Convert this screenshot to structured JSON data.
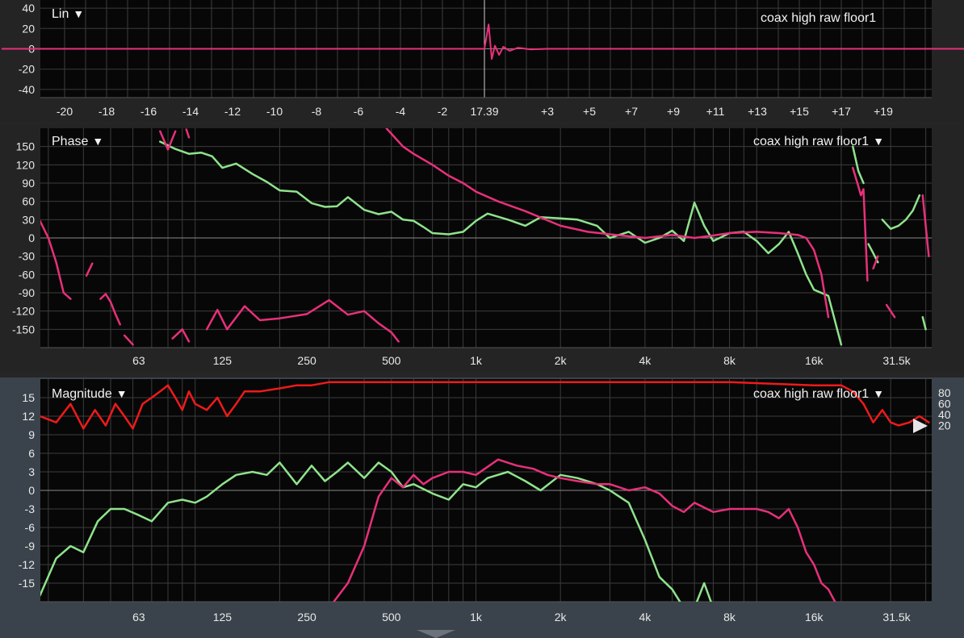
{
  "colors": {
    "green": "#8fe38c",
    "pink": "#e8307a",
    "red": "#ef1a1a",
    "grid": "#3c3c3c",
    "zero": "#8a8a8a",
    "plot_bg": "#070707"
  },
  "lin_panel": {
    "title": "Lin",
    "dropdown_icon": "triangle-down-icon",
    "trace_name": "coax high raw floor1",
    "y_ticks": [
      "40",
      "20",
      "0",
      "-20",
      "-40"
    ],
    "x_ticks": [
      "-20",
      "-18",
      "-16",
      "-14",
      "-12",
      "-10",
      "-8",
      "-6",
      "-4",
      "-2",
      "17.39",
      "+3",
      "+5",
      "+7",
      "+9",
      "+11",
      "+13",
      "+15",
      "+17",
      "+19"
    ]
  },
  "phase_panel": {
    "title": "Phase",
    "dropdown_icon": "triangle-down-icon",
    "trace_name": "coax high raw floor1",
    "trace_dropdown_icon": "triangle-down-icon",
    "y_ticks": [
      "150",
      "120",
      "90",
      "60",
      "30",
      "0",
      "-30",
      "-60",
      "-90",
      "-120",
      "-150"
    ],
    "x_ticks": [
      "63",
      "125",
      "250",
      "500",
      "1k",
      "2k",
      "4k",
      "8k",
      "16k",
      "31.5k"
    ]
  },
  "magnitude_panel": {
    "title": "Magnitude",
    "dropdown_icon": "triangle-down-icon",
    "trace_name": "coax high raw floor1",
    "trace_dropdown_icon": "triangle-down-icon",
    "y_ticks": [
      "15",
      "12",
      "9",
      "6",
      "3",
      "0",
      "-3",
      "-6",
      "-9",
      "-12",
      "-15"
    ],
    "right_ticks": [
      "80",
      "60",
      "40",
      "20"
    ],
    "x_ticks": [
      "63",
      "125",
      "250",
      "500",
      "1k",
      "2k",
      "4k",
      "8k",
      "16k",
      "31.5k"
    ],
    "handle_icon": "play-triangle-icon"
  },
  "chart_data": [
    {
      "type": "line",
      "title": "Lin",
      "x_ticks": [
        "-20",
        "-18",
        "-16",
        "-14",
        "-12",
        "-10",
        "-8",
        "-6",
        "-4",
        "-2",
        "17.39",
        "+3",
        "+5",
        "+7",
        "+9",
        "+11",
        "+13",
        "+15",
        "+17",
        "+19"
      ],
      "ylim": [
        -48,
        48
      ],
      "cursor_x": "17.39",
      "series": [
        {
          "name": "coax high raw floor1",
          "color": "#e8307a",
          "x": [
            -23,
            -2,
            0,
            0.2,
            0.35,
            0.5,
            0.7,
            0.9,
            1.2,
            1.6,
            2.2,
            3,
            24
          ],
          "y": [
            0,
            0,
            0,
            24,
            -10,
            3,
            -6,
            2,
            -2,
            1,
            -0.6,
            0,
            0
          ]
        }
      ]
    },
    {
      "type": "line",
      "title": "Phase",
      "x_scale": "log",
      "x_ticks": [
        "63",
        "125",
        "250",
        "500",
        "1k",
        "2k",
        "4k",
        "8k",
        "16k",
        "31.5k"
      ],
      "ylim": [
        -180,
        180
      ],
      "series": [
        {
          "name": "green",
          "color": "#8fe38c",
          "segments": [
            {
              "x": [
                75,
                85,
                95,
                105,
                115,
                125,
                140,
                160,
                180,
                200,
                230,
                260,
                290,
                320,
                350,
                400,
                450,
                500,
                550,
                600,
                650,
                700,
                800,
                900,
                1000,
                1100,
                1300,
                1500,
                1700,
                2000,
                2300,
                2700,
                3000,
                3500,
                4000,
                4500,
                5000,
                5500,
                6000,
                6500,
                7000,
                8000,
                9000,
                10000,
                11000,
                12000,
                13000,
                14000,
                15000,
                16000,
                18000,
                20000
              ],
              "y": [
                158,
                146,
                138,
                140,
                134,
                115,
                122,
                105,
                92,
                78,
                76,
                57,
                51,
                52,
                67,
                46,
                39,
                43,
                30,
                28,
                18,
                8,
                6,
                10,
                28,
                40,
                30,
                20,
                34,
                32,
                30,
                20,
                0,
                10,
                -8,
                0,
                12,
                -5,
                58,
                20,
                -5,
                8,
                10,
                -5,
                -25,
                -10,
                10,
                -25,
                -60,
                -85,
                -95,
                -175
              ]
            },
            {
              "x": [
                22000,
                23000,
                24000
              ],
              "y": [
                150,
                110,
                90
              ]
            },
            {
              "x": [
                25000,
                26000,
                27000
              ],
              "y": [
                -10,
                -25,
                -40
              ]
            },
            {
              "x": [
                28000,
                30000,
                32000,
                34000,
                36000,
                38000
              ],
              "y": [
                30,
                15,
                20,
                30,
                45,
                70
              ]
            },
            {
              "x": [
                39000,
                40000
              ],
              "y": [
                -130,
                -150
              ]
            }
          ]
        },
        {
          "name": "pink",
          "color": "#e8307a",
          "segments": [
            {
              "x": [
                28,
                30,
                32,
                34,
                36
              ],
              "y": [
                28,
                0,
                -40,
                -90,
                -100
              ]
            },
            {
              "x": [
                41,
                43
              ],
              "y": [
                -62,
                -42
              ]
            },
            {
              "x": [
                46,
                48,
                50,
                52,
                54
              ],
              "y": [
                -100,
                -92,
                -105,
                -125,
                -142
              ]
            },
            {
              "x": [
                56,
                60
              ],
              "y": [
                -160,
                -175
              ]
            },
            {
              "x": [
                75,
                80,
                85
              ],
              "y": [
                175,
                145,
                175
              ]
            },
            {
              "x": [
                93,
                95
              ],
              "y": [
                178,
                165
              ]
            },
            {
              "x": [
                83,
                90,
                95
              ],
              "y": [
                -165,
                -150,
                -170
              ]
            },
            {
              "x": [
                110,
                120,
                130,
                150,
                170,
                200,
                250,
                300,
                350,
                400,
                450,
                500,
                530
              ],
              "y": [
                -150,
                -118,
                -150,
                -112,
                -135,
                -132,
                -125,
                -102,
                -126,
                -120,
                -140,
                -155,
                -170
              ]
            },
            {
              "x": [
                480,
                550,
                600,
                700,
                800,
                900,
                1000,
                1200,
                1500,
                2000,
                2500,
                3000,
                4000,
                5000,
                6000,
                7000,
                8000,
                10000,
                12000,
                14000,
                15000,
                16000,
                17000,
                18000
              ],
              "y": [
                180,
                150,
                138,
                120,
                102,
                90,
                76,
                60,
                44,
                20,
                10,
                6,
                0,
                5,
                0,
                4,
                8,
                10,
                8,
                5,
                0,
                -20,
                -60,
                -130
              ]
            },
            {
              "x": [
                22000,
                23000,
                23500,
                24000,
                24800
              ],
              "y": [
                115,
                85,
                70,
                80,
                -70
              ]
            },
            {
              "x": [
                26000,
                27000
              ],
              "y": [
                -50,
                -30
              ]
            },
            {
              "x": [
                29000,
                31000
              ],
              "y": [
                -110,
                -130
              ]
            },
            {
              "x": [
                39000,
                41000
              ],
              "y": [
                70,
                -30
              ]
            }
          ]
        }
      ]
    },
    {
      "type": "line",
      "title": "Magnitude",
      "x_scale": "log",
      "x_ticks": [
        "63",
        "125",
        "250",
        "500",
        "1k",
        "2k",
        "4k",
        "8k",
        "16k",
        "31.5k"
      ],
      "ylim": [
        -18,
        18
      ],
      "right_axis_ticks": [
        "80",
        "60",
        "40",
        "20"
      ],
      "series": [
        {
          "name": "red",
          "color": "#ef1a1a",
          "x": [
            28,
            32,
            36,
            40,
            44,
            48,
            52,
            56,
            60,
            65,
            70,
            75,
            80,
            85,
            90,
            95,
            100,
            110,
            120,
            130,
            140,
            150,
            170,
            200,
            230,
            260,
            300,
            500,
            1000,
            2000,
            4000,
            8000,
            16000,
            20000,
            22000,
            24000,
            26000,
            28000,
            30000,
            32000,
            35000,
            38000,
            41000
          ],
          "y": [
            12,
            11,
            14,
            10,
            13,
            10.5,
            14,
            12,
            10,
            14,
            15,
            16,
            17,
            15,
            13,
            16,
            14,
            13,
            15,
            12,
            14,
            16,
            16,
            16.5,
            17,
            17,
            17.5,
            17.5,
            17.5,
            17.5,
            17.5,
            17.5,
            17,
            17,
            16,
            14,
            11,
            13,
            11,
            10.5,
            11,
            12,
            11
          ]
        },
        {
          "name": "green",
          "color": "#8fe38c",
          "x": [
            28,
            32,
            36,
            40,
            45,
            50,
            56,
            63,
            70,
            80,
            90,
            100,
            110,
            125,
            140,
            160,
            180,
            200,
            230,
            260,
            290,
            320,
            350,
            400,
            450,
            500,
            550,
            600,
            700,
            800,
            900,
            1000,
            1100,
            1300,
            1500,
            1700,
            2000,
            2300,
            2700,
            3000,
            3500,
            4000,
            4500,
            5000,
            5500,
            6000,
            6500,
            7000
          ],
          "y": [
            -17,
            -11,
            -9,
            -10,
            -5,
            -3,
            -3,
            -4,
            -5,
            -2,
            -1.5,
            -2,
            -1,
            1,
            2.5,
            3,
            2.5,
            4.5,
            1,
            4,
            1.5,
            3,
            4.5,
            2,
            4.5,
            3,
            0.5,
            1,
            -0.5,
            -1.5,
            1,
            0.5,
            2,
            3,
            1.5,
            0,
            2.5,
            2,
            1,
            0,
            -2,
            -8,
            -14,
            -16,
            -19,
            -19,
            -15,
            -19
          ]
        },
        {
          "name": "pink",
          "color": "#e8307a",
          "x": [
            300,
            350,
            400,
            450,
            500,
            550,
            600,
            650,
            700,
            800,
            900,
            1000,
            1200,
            1400,
            1600,
            1800,
            2000,
            2300,
            2700,
            3000,
            3500,
            4000,
            4500,
            5000,
            5500,
            6000,
            7000,
            8000,
            9000,
            10000,
            11000,
            12000,
            13000,
            14000,
            15000,
            16000,
            17000,
            18000,
            19000,
            20000,
            21000
          ],
          "y": [
            -19,
            -15,
            -9,
            -1,
            2,
            0.5,
            2.5,
            1,
            2,
            3,
            3,
            2.5,
            5,
            4,
            3.5,
            2.5,
            2,
            1.5,
            1,
            1,
            0,
            0.5,
            -0.5,
            -2.5,
            -3.5,
            -2,
            -3.5,
            -3,
            -3,
            -3,
            -3.5,
            -4.5,
            -3,
            -6,
            -10,
            -12,
            -15,
            -16,
            -18,
            -19,
            -19
          ]
        }
      ]
    }
  ]
}
